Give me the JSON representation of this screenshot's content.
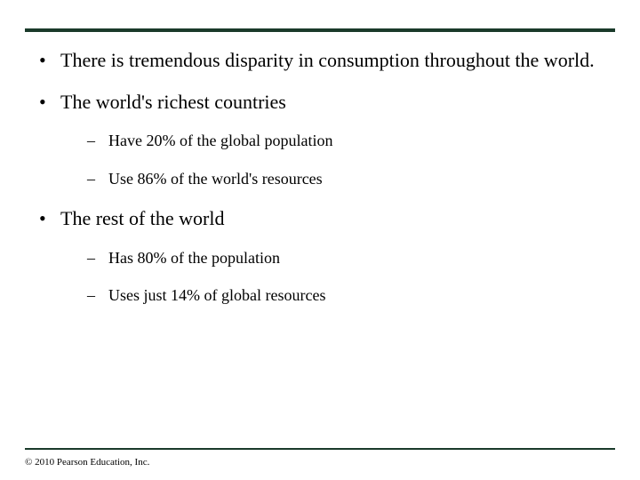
{
  "rule_color": "#1a3a2a",
  "background_color": "#ffffff",
  "text_color": "#000000",
  "font_family": "Times New Roman",
  "level1_fontsize": 22,
  "level2_fontsize": 18,
  "bullets": {
    "item1": "There is tremendous disparity in consumption throughout the world.",
    "item2": "The world's richest countries",
    "item2_sub1": "Have 20% of the global population",
    "item2_sub2": "Use 86% of the world's resources",
    "item3": "The rest of the world",
    "item3_sub1": "Has 80% of the population",
    "item3_sub2": "Uses just 14% of global resources"
  },
  "copyright": "© 2010 Pearson Education, Inc."
}
